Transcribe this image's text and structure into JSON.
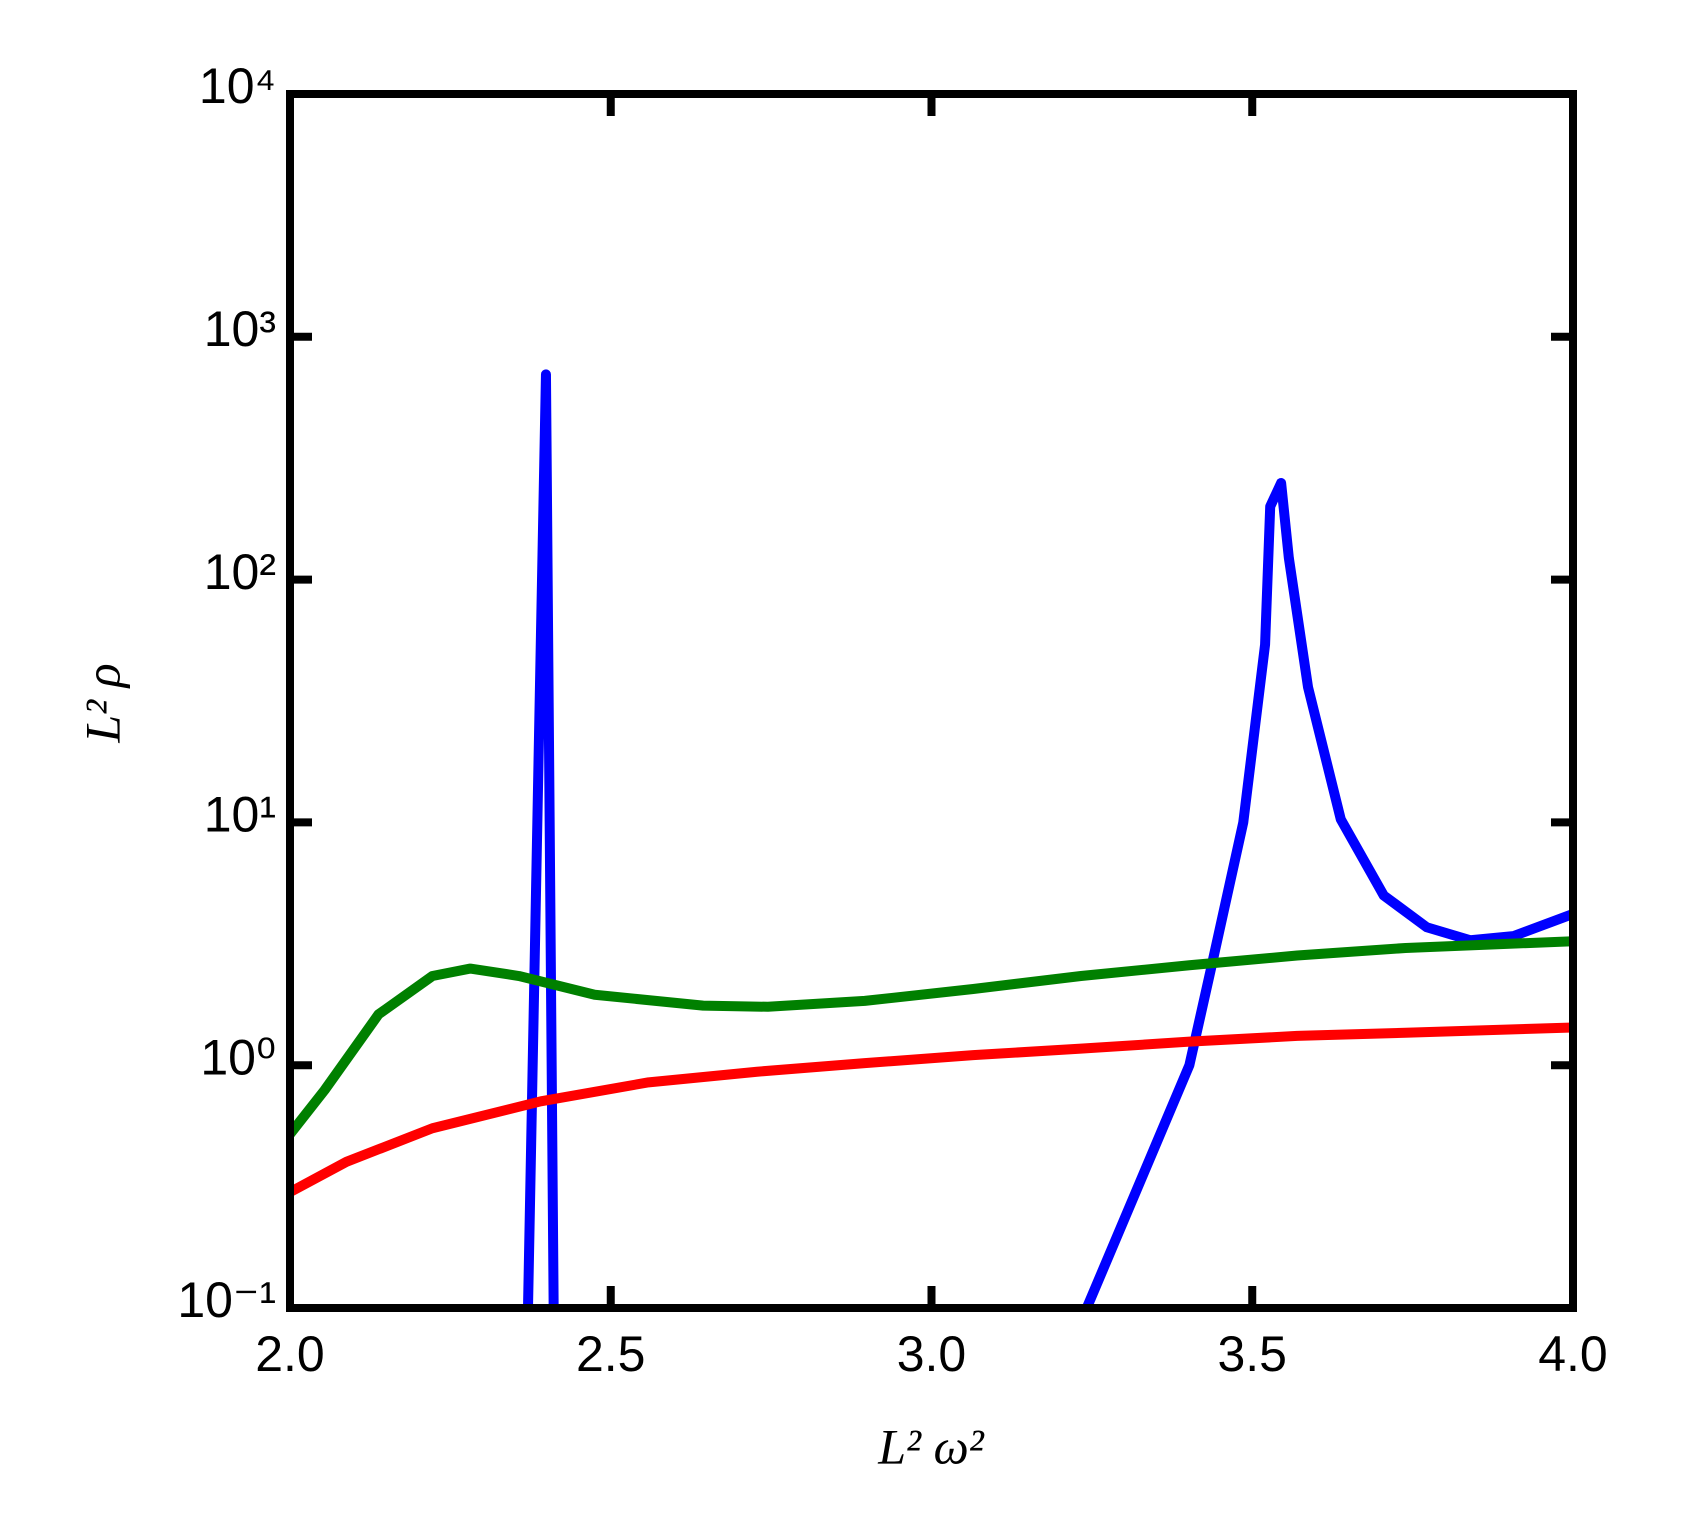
{
  "chart_data": {
    "type": "line",
    "xlabel": "L² ω²",
    "ylabel": "L² ρ",
    "yscale": "log",
    "grid": false,
    "xlim": [
      2.0,
      4.0
    ],
    "xticks": [
      {
        "value": 2,
        "label": "2.0"
      },
      2.5,
      {
        "value": 3,
        "label": "3.0"
      },
      3.5,
      {
        "value": 4,
        "label": "4.0"
      }
    ],
    "ylim": [
      0.1,
      10000
    ],
    "yticks": [
      {
        "value": 0.1,
        "label": "10⁻¹"
      },
      {
        "value": 1,
        "label": "10⁰"
      },
      {
        "value": 10,
        "label": "10¹"
      },
      {
        "value": 100,
        "label": "10²"
      },
      {
        "value": 1000,
        "label": "10³"
      },
      {
        "value": 10000,
        "label": "10⁴"
      }
    ],
    "series": [
      {
        "color": "#0000ff",
        "x": [
          2.371,
          2.399,
          2.411,
          3.0,
          3.242,
          3.402,
          3.435,
          3.486,
          3.52,
          3.528,
          3.545,
          3.557,
          3.587,
          3.638,
          3.705,
          3.772,
          3.84,
          3.907,
          4.0
        ],
        "values": [
          0.1,
          700,
          0.1,
          null,
          0.1,
          1,
          2.45,
          10,
          54,
          200,
          250,
          123,
          36,
          10.3,
          5.0,
          3.7,
          3.27,
          3.4,
          4.2
        ]
      },
      {
        "color": "#008000",
        "x": [
          2.0,
          2.054,
          2.138,
          2.222,
          2.281,
          2.357,
          2.475,
          2.644,
          2.745,
          2.896,
          3.065,
          3.233,
          3.402,
          3.57,
          3.739,
          4.0
        ],
        "values": [
          0.52,
          0.79,
          1.62,
          2.33,
          2.5,
          2.33,
          1.95,
          1.76,
          1.74,
          1.84,
          2.06,
          2.33,
          2.58,
          2.83,
          3.04,
          3.24
        ]
      },
      {
        "color": "#ff0000",
        "x": [
          2.0,
          2.088,
          2.222,
          2.391,
          2.559,
          2.728,
          2.896,
          3.065,
          3.233,
          3.402,
          3.57,
          3.739,
          4.0
        ],
        "values": [
          0.3,
          0.4,
          0.55,
          0.71,
          0.85,
          0.94,
          1.02,
          1.1,
          1.17,
          1.25,
          1.32,
          1.36,
          1.43
        ]
      }
    ]
  }
}
